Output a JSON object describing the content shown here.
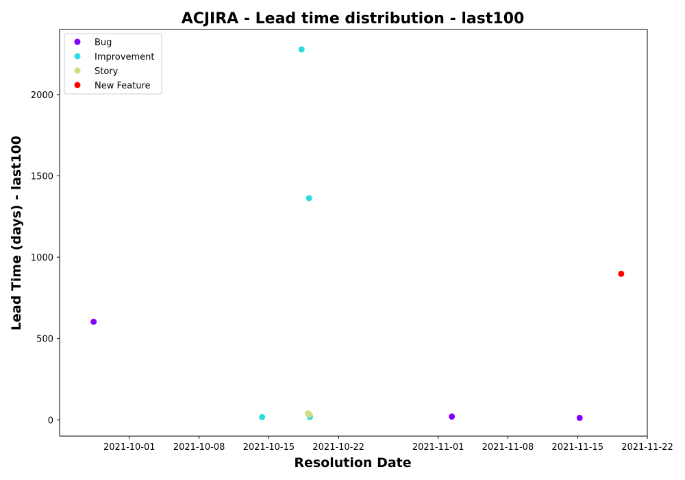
{
  "chart_data": {
    "type": "scatter",
    "title": "ACJIRA - Lead time distribution - last100",
    "xlabel": "Resolution Date",
    "ylabel": "Lead Time (days) - last100",
    "x_type": "date",
    "xlim": [
      "2021-09-24",
      "2021-11-22"
    ],
    "ylim": [
      -100,
      2400
    ],
    "x_ticks": [
      "2021-10-01",
      "2021-10-08",
      "2021-10-15",
      "2021-10-22",
      "2021-11-01",
      "2021-11-08",
      "2021-11-15",
      "2021-11-22"
    ],
    "y_ticks": [
      0,
      500,
      1000,
      1500,
      2000
    ],
    "grid": false,
    "legend_position": "top-left",
    "series": [
      {
        "name": "Bug",
        "color": "#8000ff",
        "points": [
          {
            "x": "2021-09-27T10:00",
            "y": 603
          },
          {
            "x": "2021-11-02T09:00",
            "y": 20
          },
          {
            "x": "2021-11-15T05:00",
            "y": 12
          }
        ]
      },
      {
        "name": "Improvement",
        "color": "#2adddd",
        "points": [
          {
            "x": "2021-10-14T08:00",
            "y": 17
          },
          {
            "x": "2021-10-18T07:00",
            "y": 2277
          },
          {
            "x": "2021-10-19T01:00",
            "y": 1363
          },
          {
            "x": "2021-10-19T03:00",
            "y": 22
          },
          {
            "x": "2021-10-19T03:00",
            "y": 18
          }
        ]
      },
      {
        "name": "Story",
        "color": "#d4dd80",
        "points": [
          {
            "x": "2021-10-18T22:00",
            "y": 40
          },
          {
            "x": "2021-10-19T02:00",
            "y": 32
          }
        ]
      },
      {
        "name": "New Feature",
        "color": "#ff0000",
        "points": [
          {
            "x": "2021-11-19T09:00",
            "y": 898
          }
        ]
      }
    ]
  }
}
